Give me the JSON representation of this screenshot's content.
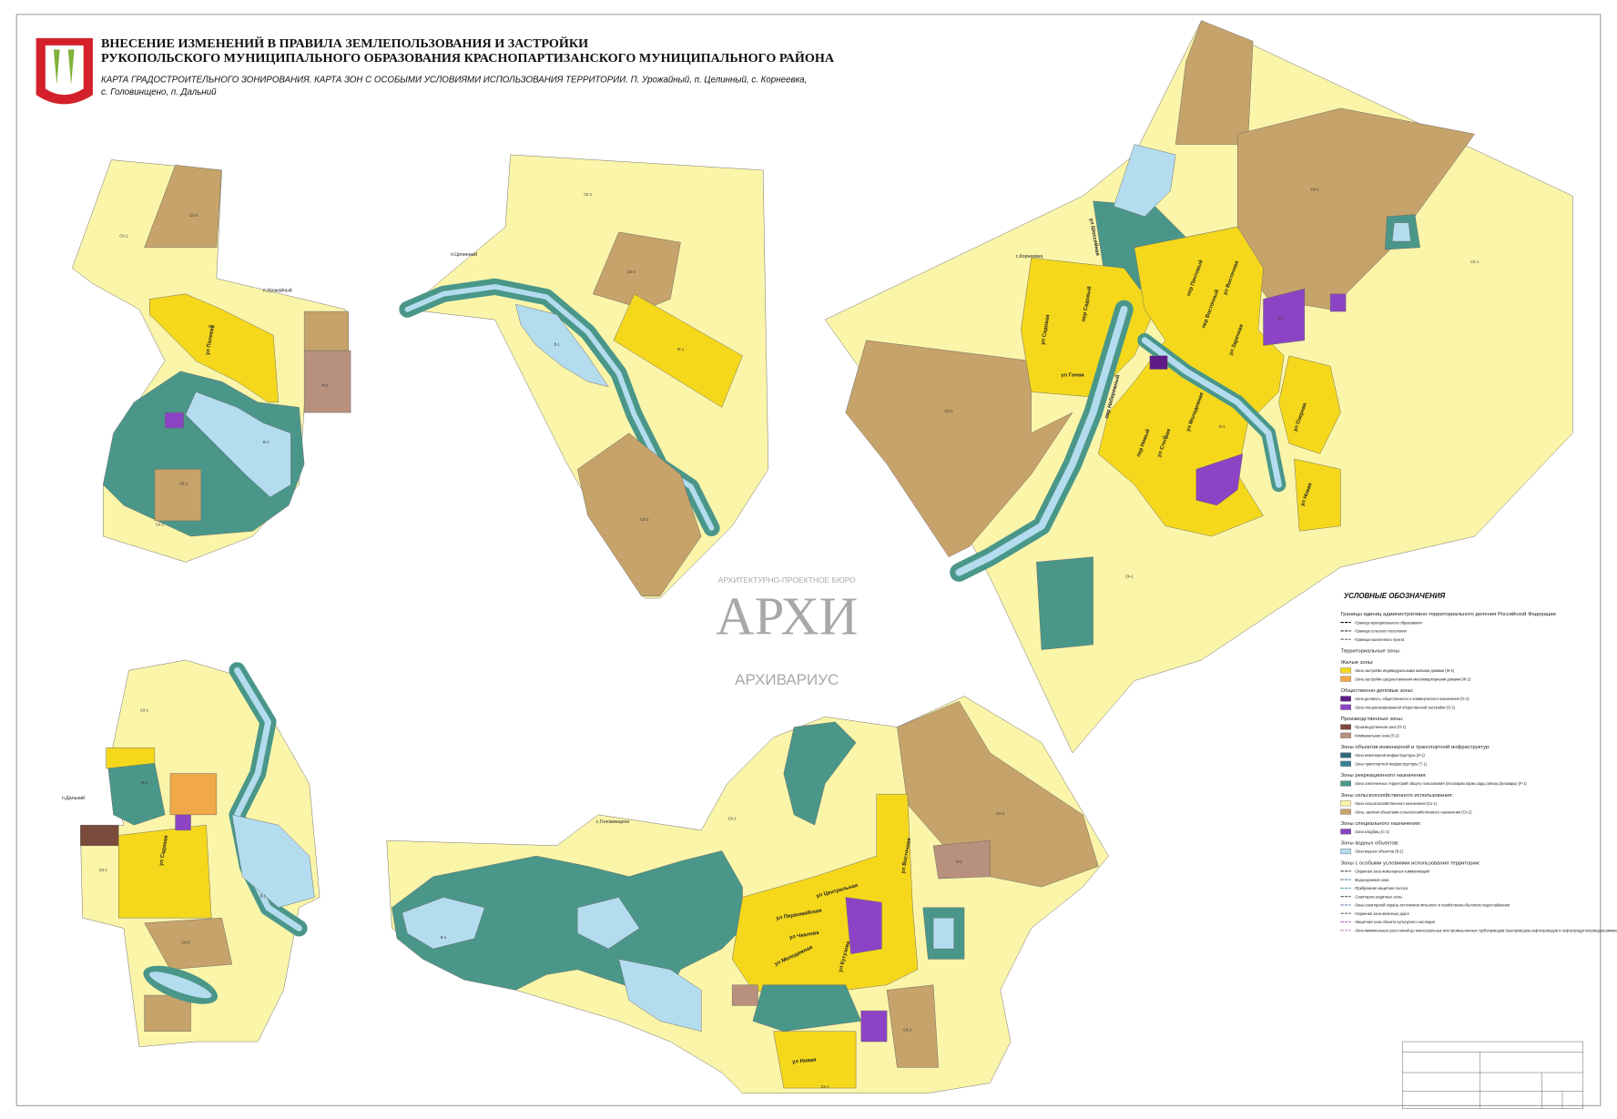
{
  "header": {
    "title_line1": "ВНЕСЕНИЕ ИЗМЕНЕНИЙ В ПРАВИЛА ЗЕМЛЕПОЛЬЗОВАНИЯ И ЗАСТРОЙКИ",
    "title_line2": "РУКОПОЛЬСКОГО МУНИЦИПАЛЬНОГО ОБРАЗОВАНИЯ КРАСНОПАРТИЗАНСКОГО МУНИЦИПАЛЬНОГО РАЙОНА",
    "subtitle_line1": "КАРТА ГРАДОСТРОИТЕЛЬНОГО ЗОНИРОВАНИЯ.  КАРТА ЗОН С ОСОБЫМИ УСЛОВИЯМИ ИСПОЛЬЗОВАНИЯ ТЕРРИТОРИИ.  П. Урожайный, п. Целинный, с. Корнеевка,",
    "subtitle_line2": "с. Головинщено, п. Дальний"
  },
  "settlements": [
    "п.Урожайный",
    "п.Целинный",
    "с.Корнеевка",
    "п.Дальний",
    "с.Головинщено"
  ],
  "streets": [
    "ул Полевая",
    "ул Шоссейная",
    "пер Садовый",
    "ул Садовая",
    "ул Гоная",
    "пер Набережный",
    "пер Почтовый",
    "ул Восточная",
    "пер Восточный",
    "ул Заречная",
    "ул Степная",
    "пер Новый",
    "ул Молодежная",
    "ул Озерная",
    "ул Новая",
    "ул Садовая",
    "ул Центральная",
    "ул Первомайская",
    "ул Чкалова",
    "ул Молодежная",
    "ул Кутузова",
    "ул Новая",
    "ул Восточная"
  ],
  "zone_labels": [
    "СХ-1",
    "СХ-2",
    "Ж-1",
    "В-1",
    "П-2",
    "СХ-2",
    "СХ-1",
    "СХ-1",
    "СХ-2",
    "Ж-1",
    "В-1",
    "СХ-2",
    "СХ-1",
    "СХ-2",
    "СХ-1",
    "В-1",
    "Ж-1",
    "О-1",
    "СХ-1",
    "СХ-1",
    "Ж-1",
    "СХ-2",
    "В-1",
    "СХ-1",
    "СХ-1",
    "СХ-2",
    "П-2",
    "В-1",
    "СХ-2",
    "СХ-1"
  ],
  "watermark": {
    "top": "АРХИТЕКТУРНО-ПРОЕКТНОЕ БЮРО",
    "middle": "АРХИ",
    "bottom": "АРХИВАРИУС"
  },
  "legend": {
    "title": "УСЛОВНЫЕ ОБОЗНАЧЕНИЯ",
    "entries": [
      {
        "heading": "Границы единиц административно-территориального деления Российской Федерации"
      },
      {
        "label": "-Граница муниципального образования",
        "line": "#000"
      },
      {
        "label": "-Граница сельского поселения",
        "line": "#333"
      },
      {
        "label": "-Граница населенного пункта",
        "line": "#666"
      },
      {
        "heading": "Территориальные зоны:"
      },
      {
        "heading": "Жилые зоны:"
      },
      {
        "label": "-Зона застройки индивидуальными жилыми домами (Ж-1)",
        "color": "#f5d81c"
      },
      {
        "label": "-Зона застройки среднеэтажными многоквартирными домами (Ж-2)",
        "color": "#f0a848"
      },
      {
        "heading": "Общественно-деловые зоны:"
      },
      {
        "label": "-Зона делового, общественного и коммерческого назначения (О-1)",
        "color": "#5e1a86"
      },
      {
        "label": "-Зона специализированной общественной застройки (О-2)",
        "color": "#8c44c4"
      },
      {
        "heading": "Производственные зоны:"
      },
      {
        "label": "-Производственная зона (П-1)",
        "color": "#7a4a3a"
      },
      {
        "label": "-Коммунальная зона (П-2)",
        "color": "#b8907e"
      },
      {
        "heading": "Зоны объектов инженерной и транспортной инфраструктур:"
      },
      {
        "label": "-Зона инженерной инфраструктуры (И-1)",
        "color": "#2f6a7a"
      },
      {
        "label": "-Зона транспортной инфраструктуры (Т-1)",
        "color": "#3b7f95"
      },
      {
        "heading": "Зоны рекреационного назначения:"
      },
      {
        "label": "-Зона озелененных территорий общего пользования (лесопарки,парки,сады,скверы,бульвары) (Р-1)",
        "color": "#4a978a"
      },
      {
        "heading": "Зоны сельскохозяйственного использования:"
      },
      {
        "label": "-Зона сельскохозяйственного назначения (Сх-1)",
        "color": "#fbf5aa"
      },
      {
        "label": "-Зона, занятая объектами сельскохозяйственного назначения (Сх-2)",
        "color": "#c6a36a"
      },
      {
        "heading": "Зоны специального назначения:"
      },
      {
        "label": "-Зона кладбищ (С-1)",
        "color": "#8a46c2"
      },
      {
        "heading": "Зоны водных объектов:"
      },
      {
        "label": "-Зона водных объектов (В-1)",
        "color": "#b4dcef"
      },
      {
        "heading": "Зоны с особыми условиями использования территории:"
      },
      {
        "label": "-Охранная зона инженерных коммуникаций",
        "line": "#444"
      },
      {
        "label": "-Водоохранная зона",
        "line": "#5a7fa0"
      },
      {
        "label": "-Прибрежная защитная полоса",
        "line": "#4aa0b0"
      },
      {
        "label": "-Санитарно-защитные зоны",
        "line": "#555"
      },
      {
        "label": "-Зоны санитарной охраны источников питьевого и хозяйственно-бытового водоснабжения",
        "line": "#6a8ab0"
      },
      {
        "label": "-Охранная зона железных дорог",
        "line": "#777"
      },
      {
        "label": "-Защитная зона объекта культурного наследия",
        "line": "#b060c0"
      },
      {
        "label": "-Зона минимальных расстояний до магистральных или промышленных трубопроводов (газопроводов,нефтепроводов и нефтепродуктопроводов,аммиакопроводов)",
        "line": "#c080c0"
      }
    ]
  }
}
